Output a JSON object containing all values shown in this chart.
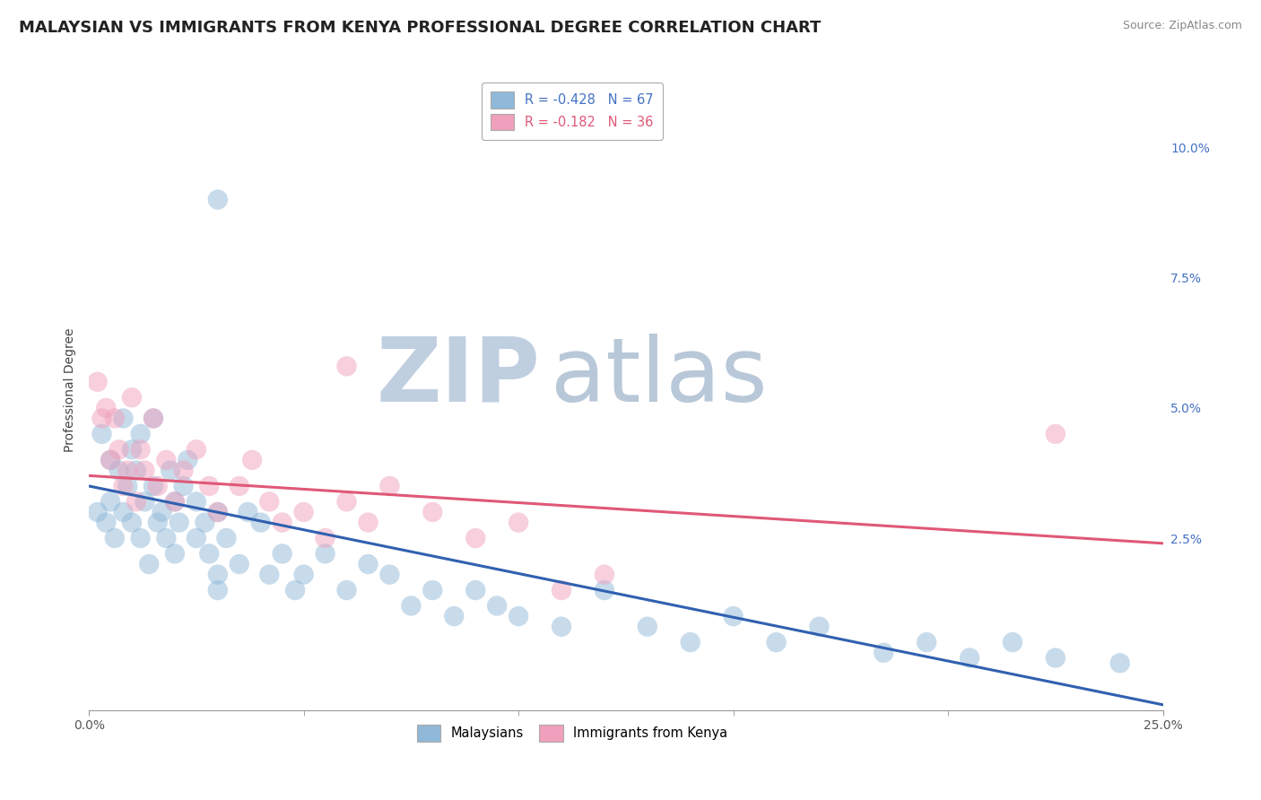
{
  "title": "MALAYSIAN VS IMMIGRANTS FROM KENYA PROFESSIONAL DEGREE CORRELATION CHART",
  "source": "Source: ZipAtlas.com",
  "ylabel": "Professional Degree",
  "x_min": 0.0,
  "x_max": 0.25,
  "y_min": -0.008,
  "y_max": 0.115,
  "y_ticks": [
    0.025,
    0.05,
    0.075,
    0.1
  ],
  "y_tick_labels": [
    "2.5%",
    "5.0%",
    "7.5%",
    "10.0%"
  ],
  "legend_entries": [
    {
      "label": "R = -0.428   N = 67"
    },
    {
      "label": "R = -0.182   N = 36"
    }
  ],
  "legend_bottom": [
    "Malaysians",
    "Immigrants from Kenya"
  ],
  "blue_color": "#90b8d8",
  "pink_color": "#f0a0bc",
  "blue_edge_color": "#90b8d8",
  "pink_edge_color": "#f0a0bc",
  "blue_line_color": "#3060b0",
  "pink_line_color": "#e05878",
  "watermark_zip": "ZIP",
  "watermark_atlas": "atlas",
  "watermark_color_zip": "#c0cfe0",
  "watermark_color_atlas": "#b8c8d8",
  "title_fontsize": 13,
  "axis_label_fontsize": 10,
  "tick_fontsize": 10,
  "blue_trend_x": [
    0.0,
    0.25
  ],
  "blue_trend_y": [
    0.035,
    -0.007
  ],
  "pink_trend_x": [
    0.0,
    0.25
  ],
  "pink_trend_y": [
    0.037,
    0.024
  ],
  "blue_x": [
    0.002,
    0.003,
    0.004,
    0.005,
    0.005,
    0.006,
    0.007,
    0.008,
    0.008,
    0.009,
    0.01,
    0.01,
    0.011,
    0.012,
    0.012,
    0.013,
    0.014,
    0.015,
    0.015,
    0.016,
    0.017,
    0.018,
    0.019,
    0.02,
    0.02,
    0.021,
    0.022,
    0.023,
    0.025,
    0.025,
    0.027,
    0.028,
    0.03,
    0.03,
    0.032,
    0.035,
    0.037,
    0.04,
    0.042,
    0.045,
    0.048,
    0.05,
    0.055,
    0.06,
    0.065,
    0.07,
    0.075,
    0.08,
    0.085,
    0.09,
    0.095,
    0.1,
    0.11,
    0.12,
    0.13,
    0.14,
    0.15,
    0.16,
    0.17,
    0.185,
    0.195,
    0.205,
    0.215,
    0.225,
    0.24,
    0.03,
    0.03
  ],
  "blue_y": [
    0.03,
    0.045,
    0.028,
    0.032,
    0.04,
    0.025,
    0.038,
    0.048,
    0.03,
    0.035,
    0.042,
    0.028,
    0.038,
    0.045,
    0.025,
    0.032,
    0.02,
    0.035,
    0.048,
    0.028,
    0.03,
    0.025,
    0.038,
    0.032,
    0.022,
    0.028,
    0.035,
    0.04,
    0.025,
    0.032,
    0.028,
    0.022,
    0.03,
    0.018,
    0.025,
    0.02,
    0.03,
    0.028,
    0.018,
    0.022,
    0.015,
    0.018,
    0.022,
    0.015,
    0.02,
    0.018,
    0.012,
    0.015,
    0.01,
    0.015,
    0.012,
    0.01,
    0.008,
    0.015,
    0.008,
    0.005,
    0.01,
    0.005,
    0.008,
    0.003,
    0.005,
    0.002,
    0.005,
    0.002,
    0.001,
    0.09,
    0.015
  ],
  "pink_x": [
    0.002,
    0.003,
    0.004,
    0.005,
    0.006,
    0.007,
    0.008,
    0.009,
    0.01,
    0.011,
    0.012,
    0.013,
    0.015,
    0.016,
    0.018,
    0.02,
    0.022,
    0.025,
    0.028,
    0.03,
    0.035,
    0.038,
    0.042,
    0.045,
    0.05,
    0.055,
    0.06,
    0.065,
    0.07,
    0.08,
    0.09,
    0.1,
    0.11,
    0.12,
    0.225,
    0.06
  ],
  "pink_y": [
    0.055,
    0.048,
    0.05,
    0.04,
    0.048,
    0.042,
    0.035,
    0.038,
    0.052,
    0.032,
    0.042,
    0.038,
    0.048,
    0.035,
    0.04,
    0.032,
    0.038,
    0.042,
    0.035,
    0.03,
    0.035,
    0.04,
    0.032,
    0.028,
    0.03,
    0.025,
    0.032,
    0.028,
    0.035,
    0.03,
    0.025,
    0.028,
    0.015,
    0.018,
    0.045,
    0.058
  ]
}
